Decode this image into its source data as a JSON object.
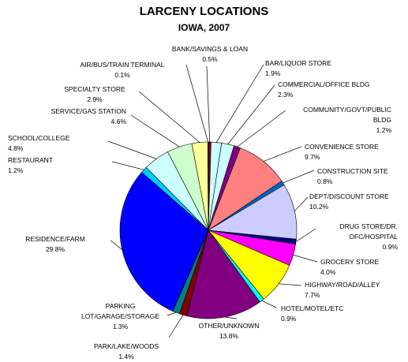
{
  "chart_data": {
    "type": "pie",
    "title": "LARCENY LOCATIONS",
    "subtitle": "IOWA, 2007",
    "categories": [
      "BANK/SAVINGS & LOAN",
      "BAR/LIQUOR STORE",
      "COMMERCIAL/OFFICE BLDG",
      "COMMUNITY/GOVT/PUBLIC BLDG",
      "CONVENIENCE STORE",
      "CONSTRUCTION SITE",
      "DEPT/DISCOUNT STORE",
      "DRUG STORE/DR. OFC/HOSPITAL",
      "GROCERY STORE",
      "HIGHWAY/ROAD/ALLEY",
      "HOTEL/MOTEL/ETC",
      "OTHER/UNKNOWN",
      "PARK/LAKE/WOODS",
      "PARKING LOT/GARAGE/STORAGE",
      "RESIDENCE/FARM",
      "RESTAURANT",
      "SCHOOL/COLLEGE",
      "SERVICE/GAS STATION",
      "SPECIALTY STORE",
      "AIR/BUS/TRAIN TERMINAL"
    ],
    "values": [
      0.5,
      1.9,
      2.3,
      1.2,
      9.7,
      0.8,
      10.2,
      0.9,
      4.0,
      7.7,
      0.9,
      13.8,
      1.4,
      1.3,
      29.8,
      1.2,
      4.8,
      4.6,
      2.9,
      0.1
    ],
    "value_labels": [
      "0.5%",
      "1.9%",
      "2.3%",
      "1.2%",
      "9.7%",
      "0.8%",
      "10.2%",
      "0.9%",
      "4.0%",
      "7.7%",
      "0.9%",
      "13.8%",
      "1.4%",
      "1.3%",
      "29.8%",
      "1.2%",
      "4.8%",
      "4.6%",
      "2.9%",
      "0.1%"
    ],
    "colors": [
      "#800000",
      "#ccffff",
      "#ccffff",
      "#800080",
      "#ff8080",
      "#0066cc",
      "#ccccff",
      "#000080",
      "#ff00ff",
      "#ffff00",
      "#00ffff",
      "#800080",
      "#800000",
      "#008080",
      "#0000ff",
      "#00ccff",
      "#ccffff",
      "#ccffcc",
      "#ffff99",
      "#99ccff"
    ]
  }
}
